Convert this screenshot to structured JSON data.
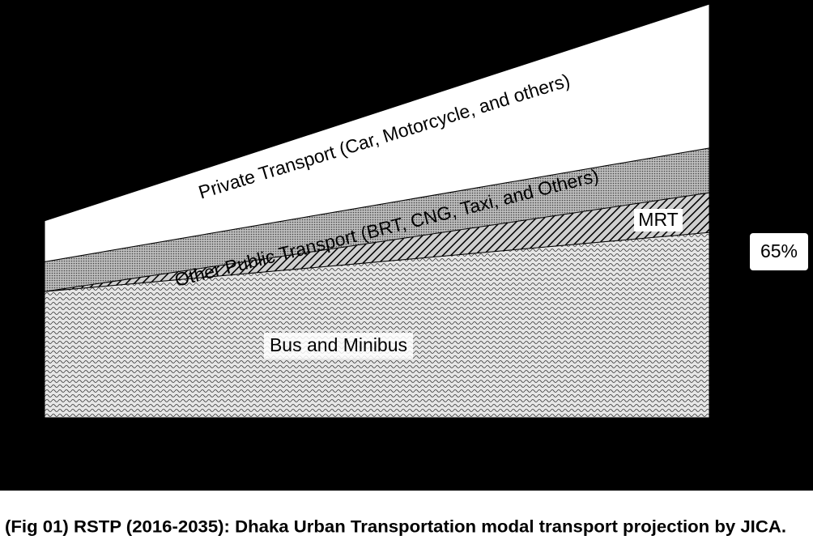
{
  "chart_data": {
    "type": "area",
    "caption": "(Fig 01) RSTP (2016-2035): Dhaka Urban Transportation modal transport projection by JICA.",
    "categories": [
      null,
      null
    ],
    "ylim": [
      0,
      100
    ],
    "series": [
      {
        "name": "Bus and Minibus",
        "color": "#e6e6e6",
        "values": [
          30.5,
          44.8
        ]
      },
      {
        "name": "MRT",
        "color": "#cfcfcf",
        "values": [
          0,
          9.6
        ]
      },
      {
        "name": "Other Public Transport (BRT, CNG, Taxi, and Others)",
        "color": "#bdbdbd",
        "values": [
          7.2,
          10.8
        ]
      },
      {
        "name": "Private Transport (Car, Motorcycle, and others)",
        "color": "#ffffff",
        "values": [
          9.9,
          34.8
        ]
      }
    ],
    "annotations": [
      "65%"
    ]
  }
}
